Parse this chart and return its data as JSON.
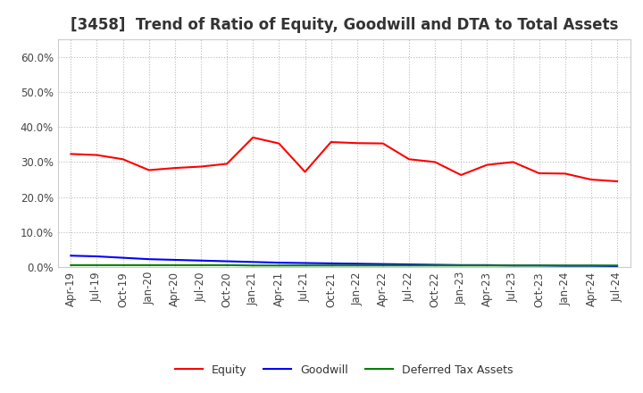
{
  "title": "[3458]  Trend of Ratio of Equity, Goodwill and DTA to Total Assets",
  "x_labels": [
    "Apr-19",
    "Jul-19",
    "Oct-19",
    "Jan-20",
    "Apr-20",
    "Jul-20",
    "Oct-20",
    "Jan-21",
    "Apr-21",
    "Jul-21",
    "Oct-21",
    "Jan-22",
    "Apr-22",
    "Jul-22",
    "Oct-22",
    "Jan-23",
    "Apr-23",
    "Jul-23",
    "Oct-23",
    "Jan-24",
    "Apr-24",
    "Jul-24"
  ],
  "equity": [
    0.323,
    0.32,
    0.308,
    0.277,
    0.283,
    0.287,
    0.295,
    0.37,
    0.353,
    0.272,
    0.357,
    0.354,
    0.353,
    0.308,
    0.3,
    0.263,
    0.292,
    0.3,
    0.268,
    0.267,
    0.25,
    0.245
  ],
  "goodwill": [
    0.033,
    0.031,
    0.027,
    0.023,
    0.021,
    0.019,
    0.017,
    0.015,
    0.013,
    0.012,
    0.011,
    0.01,
    0.009,
    0.008,
    0.007,
    0.006,
    0.006,
    0.005,
    0.005,
    0.004,
    0.004,
    0.003
  ],
  "dta": [
    0.006,
    0.006,
    0.006,
    0.006,
    0.006,
    0.006,
    0.006,
    0.005,
    0.005,
    0.005,
    0.005,
    0.005,
    0.005,
    0.005,
    0.005,
    0.005,
    0.005,
    0.005,
    0.005,
    0.005,
    0.005,
    0.005
  ],
  "equity_color": "#ff0000",
  "goodwill_color": "#0000ff",
  "dta_color": "#008000",
  "ylim": [
    0.0,
    0.65
  ],
  "yticks": [
    0.0,
    0.1,
    0.2,
    0.3,
    0.4,
    0.5,
    0.6
  ],
  "legend_labels": [
    "Equity",
    "Goodwill",
    "Deferred Tax Assets"
  ],
  "background_color": "#ffffff",
  "grid_color": "#bbbbbb",
  "title_fontsize": 12,
  "tick_fontsize": 8.5
}
